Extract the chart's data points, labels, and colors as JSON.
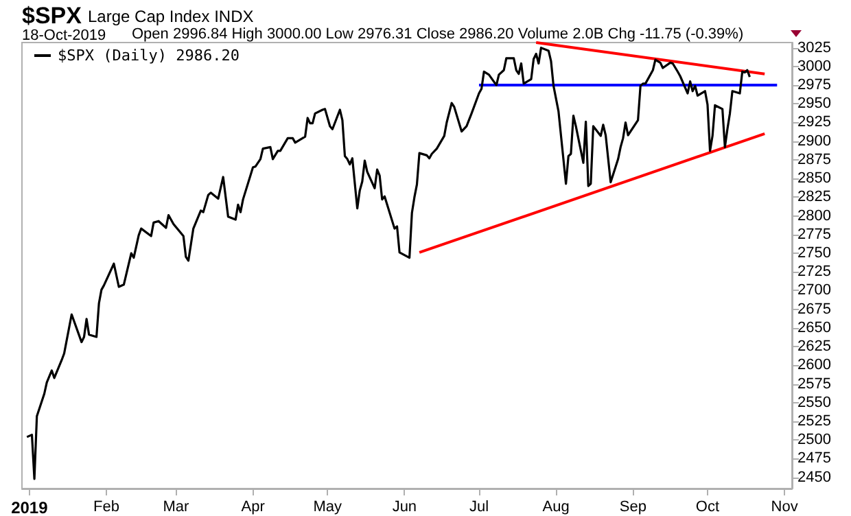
{
  "chart_data": {
    "type": "line",
    "title": "$SPX",
    "subtitle": "Large Cap Index  INDX",
    "annotations": [
      "18-Oct-2019",
      "Open 2996.84  High 3000.00  Low 2976.31  Close 2986.20  Volume 2.0B  Chg -11.75 (-0.39%)"
    ],
    "xlim": [
      "2018-12-29",
      "2019-11-04"
    ],
    "xticks": [
      {
        "value": "2019-01-01",
        "label": "2019"
      },
      {
        "value": "2019-02-01",
        "label": "Feb"
      },
      {
        "value": "2019-03-01",
        "label": "Mar"
      },
      {
        "value": "2019-04-01",
        "label": "Apr"
      },
      {
        "value": "2019-05-01",
        "label": "May"
      },
      {
        "value": "2019-06-01",
        "label": "Jun"
      },
      {
        "value": "2019-07-01",
        "label": "Jul"
      },
      {
        "value": "2019-08-01",
        "label": "Aug"
      },
      {
        "value": "2019-09-01",
        "label": "Sep"
      },
      {
        "value": "2019-10-01",
        "label": "Oct"
      },
      {
        "value": "2019-11-01",
        "label": "Nov"
      }
    ],
    "ylim": [
      2435,
      3032
    ],
    "yticks": [
      2450,
      2475,
      2500,
      2525,
      2550,
      2575,
      2600,
      2625,
      2650,
      2675,
      2700,
      2725,
      2750,
      2775,
      2800,
      2825,
      2850,
      2875,
      2900,
      2925,
      2950,
      2975,
      3000,
      3025
    ],
    "grid": false,
    "legend": "top left",
    "marker": "none",
    "line_style": "solid",
    "series": [
      {
        "name": "$SPX (Daily) 2986.20",
        "color": "#000000",
        "x": [
          "2018-12-31",
          "2019-01-02",
          "2019-01-03",
          "2019-01-04",
          "2019-01-07",
          "2019-01-08",
          "2019-01-10",
          "2019-01-11",
          "2019-01-14",
          "2019-01-15",
          "2019-01-18",
          "2019-01-22",
          "2019-01-23",
          "2019-01-24",
          "2019-01-25",
          "2019-01-28",
          "2019-01-29",
          "2019-01-30",
          "2019-01-31",
          "2019-02-04",
          "2019-02-06",
          "2019-02-08",
          "2019-02-11",
          "2019-02-12",
          "2019-02-14",
          "2019-02-15",
          "2019-02-19",
          "2019-02-20",
          "2019-02-22",
          "2019-02-25",
          "2019-02-26",
          "2019-02-28",
          "2019-03-04",
          "2019-03-05",
          "2019-03-06",
          "2019-03-08",
          "2019-03-11",
          "2019-03-12",
          "2019-03-14",
          "2019-03-15",
          "2019-03-18",
          "2019-03-20",
          "2019-03-22",
          "2019-03-25",
          "2019-03-26",
          "2019-03-27",
          "2019-03-28",
          "2019-04-01",
          "2019-04-02",
          "2019-04-04",
          "2019-04-05",
          "2019-04-08",
          "2019-04-09",
          "2019-04-11",
          "2019-04-12",
          "2019-04-15",
          "2019-04-17",
          "2019-04-18",
          "2019-04-22",
          "2019-04-23",
          "2019-04-24",
          "2019-04-25",
          "2019-04-26",
          "2019-04-29",
          "2019-04-30",
          "2019-05-02",
          "2019-05-03",
          "2019-05-06",
          "2019-05-07",
          "2019-05-08",
          "2019-05-09",
          "2019-05-10",
          "2019-05-11",
          "2019-05-13",
          "2019-05-14",
          "2019-05-15",
          "2019-05-16",
          "2019-05-17",
          "2019-05-20",
          "2019-05-21",
          "2019-05-22",
          "2019-05-23",
          "2019-05-24",
          "2019-05-28",
          "2019-05-29",
          "2019-05-30",
          "2019-06-03",
          "2019-06-04",
          "2019-06-05",
          "2019-06-06",
          "2019-06-07",
          "2019-06-10",
          "2019-06-11",
          "2019-06-12",
          "2019-06-14",
          "2019-06-17",
          "2019-06-18",
          "2019-06-20",
          "2019-06-21",
          "2019-06-24",
          "2019-06-26",
          "2019-06-28",
          "2019-07-01",
          "2019-07-02",
          "2019-07-03",
          "2019-07-05",
          "2019-07-08",
          "2019-07-09",
          "2019-07-11",
          "2019-07-12",
          "2019-07-15",
          "2019-07-16",
          "2019-07-17",
          "2019-07-18",
          "2019-07-19",
          "2019-07-22",
          "2019-07-23",
          "2019-07-24",
          "2019-07-25",
          "2019-07-26",
          "2019-07-29",
          "2019-07-30",
          "2019-07-31",
          "2019-08-02",
          "2019-08-05",
          "2019-08-06",
          "2019-08-07",
          "2019-08-08",
          "2019-08-09",
          "2019-08-12",
          "2019-08-13",
          "2019-08-14",
          "2019-08-15",
          "2019-08-16",
          "2019-08-19",
          "2019-08-20",
          "2019-08-21",
          "2019-08-23",
          "2019-08-26",
          "2019-08-27",
          "2019-08-28",
          "2019-08-29",
          "2019-08-30",
          "2019-09-03",
          "2019-09-04",
          "2019-09-05",
          "2019-09-06",
          "2019-09-09",
          "2019-09-10",
          "2019-09-12",
          "2019-09-13",
          "2019-09-16",
          "2019-09-17",
          "2019-09-19",
          "2019-09-20",
          "2019-09-23",
          "2019-09-24",
          "2019-09-25",
          "2019-09-26",
          "2019-09-27",
          "2019-09-30",
          "2019-10-01",
          "2019-10-02",
          "2019-10-03",
          "2019-10-04",
          "2019-10-07",
          "2019-10-08",
          "2019-10-09",
          "2019-10-10",
          "2019-10-11",
          "2019-10-14",
          "2019-10-15",
          "2019-10-16",
          "2019-10-17",
          "2019-10-18"
        ],
        "values": [
          2504,
          2507,
          2448,
          2532,
          2562,
          2577,
          2593,
          2583,
          2607,
          2616,
          2668,
          2631,
          2638,
          2662,
          2641,
          2638,
          2683,
          2701,
          2707,
          2736,
          2705,
          2708,
          2750,
          2744,
          2774,
          2783,
          2773,
          2791,
          2793,
          2784,
          2801,
          2789,
          2773,
          2745,
          2740,
          2783,
          2807,
          2805,
          2828,
          2831,
          2823,
          2852,
          2799,
          2795,
          2815,
          2805,
          2822,
          2865,
          2866,
          2876,
          2890,
          2892,
          2876,
          2887,
          2887,
          2904,
          2904,
          2898,
          2906,
          2931,
          2924,
          2924,
          2937,
          2942,
          2943,
          2920,
          2916,
          2942,
          2928,
          2880,
          2876,
          2869,
          2877,
          2810,
          2834,
          2846,
          2874,
          2859,
          2837,
          2862,
          2854,
          2822,
          2826,
          2783,
          2786,
          2751,
          2744,
          2804,
          2825,
          2842,
          2884,
          2881,
          2877,
          2883,
          2890,
          2907,
          2925,
          2951,
          2946,
          2913,
          2920,
          2937,
          2964,
          2970,
          2993,
          2989,
          2975,
          2989,
          2995,
          3011,
          3011,
          2995,
          2990,
          3004,
          2977,
          2983,
          3010,
          3017,
          3004,
          3025,
          3021,
          3007,
          2974,
          2940,
          2843,
          2880,
          2883,
          2934,
          2920,
          2871,
          2926,
          2840,
          2843,
          2920,
          2907,
          2922,
          2908,
          2845,
          2876,
          2892,
          2904,
          2925,
          2908,
          2928,
          2974,
          2977,
          2977,
          2995,
          3009,
          3005,
          2998,
          3005,
          3004,
          2993,
          2987,
          2964,
          2980,
          2967,
          2974,
          2961,
          2967,
          2949,
          2887,
          2907,
          2948,
          2943,
          2892,
          2916,
          2937,
          2967,
          2964,
          2993,
          2992,
          2995,
          2986
        ]
      },
      {
        "color": "#0000ff",
        "x": [
          "2019-07-01",
          "2019-10-29"
        ],
        "values": [
          2975,
          2975
        ]
      },
      {
        "color": "#ff0000",
        "x": [
          "2019-06-07",
          "2019-10-24"
        ],
        "values": [
          2751,
          2910
        ]
      },
      {
        "color": "#ff0000",
        "x": [
          "2019-07-24",
          "2019-10-24"
        ],
        "values": [
          3032,
          2990
        ]
      }
    ]
  }
}
